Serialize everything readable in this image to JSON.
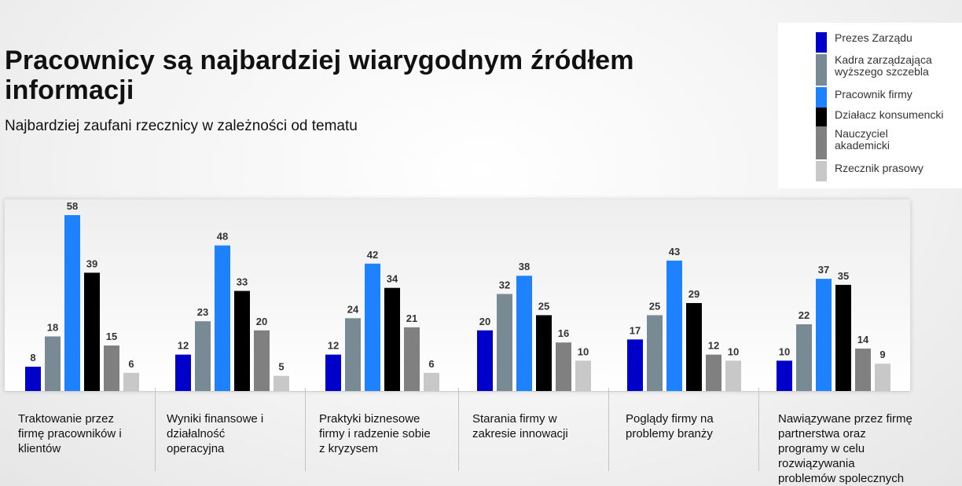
{
  "title": "Pracownicy są najbardziej wiarygodnym źródłem informacji",
  "subtitle": "Najbardziej zaufani rzecznicy w zależności od tematu",
  "legend": [
    {
      "label": "Prezes Zarządu",
      "color": "#0000c8"
    },
    {
      "label": "Kadra zarządzająca wyższego szczebla",
      "color": "#788a94"
    },
    {
      "label": "Pracownik firmy",
      "color": "#1e82ff"
    },
    {
      "label": "Działacz konsumencki",
      "color": "#000000"
    },
    {
      "label": "Nauczyciel akademicki",
      "color": "#808080"
    },
    {
      "label": "Rzecznik prasowy",
      "color": "#c8c8c8"
    }
  ],
  "chart_data": {
    "type": "bar",
    "title": "Pracownicy są najbardziej wiarygodnym źródłem informacji",
    "subtitle": "Najbardziej zaufani rzecznicy w zależności od tematu",
    "categories": [
      "Traktowanie przez firmę pracowników i klientów",
      "Wyniki finansowe i działalność operacyjna",
      "Praktyki biznesowe firmy i radzenie sobie z kryzysem",
      "Starania firmy w zakresie innowacji",
      "Poglądy firmy na problemy branży",
      "Nawiązywane przez firmę partnerstwa oraz programy w celu rozwiązywania problemów społecznych"
    ],
    "series": [
      {
        "name": "Prezes Zarządu",
        "values": [
          8,
          12,
          12,
          20,
          17,
          10
        ]
      },
      {
        "name": "Kadra zarządzająca wyższego szczebla",
        "values": [
          18,
          23,
          24,
          32,
          25,
          22
        ]
      },
      {
        "name": "Pracownik firmy",
        "values": [
          58,
          48,
          42,
          38,
          43,
          37
        ]
      },
      {
        "name": "Działacz konsumencki",
        "values": [
          39,
          33,
          34,
          25,
          29,
          35
        ]
      },
      {
        "name": "Nauczyciel akademicki",
        "values": [
          15,
          20,
          21,
          16,
          12,
          14
        ]
      },
      {
        "name": "Rzecznik prasowy",
        "values": [
          6,
          5,
          6,
          10,
          10,
          9
        ]
      }
    ],
    "xlabel": "",
    "ylabel": "",
    "ylim": [
      0,
      60
    ],
    "grid": false,
    "legend_position": "top-right",
    "data_labels": true
  },
  "category_label_lines": [
    [
      "Traktowanie przez",
      "firmę pracowników i",
      "klientów"
    ],
    [
      "Wyniki finansowe i",
      "działalność",
      "operacyjna"
    ],
    [
      "Praktyki biznesowe",
      "firmy i radzenie sobie",
      "z kryzysem"
    ],
    [
      "Starania firmy  w",
      "zakresie innowacji"
    ],
    [
      "Poglądy firmy na",
      "problemy branży"
    ],
    [
      "Nawiązywane przez firmę",
      "partnerstwa oraz",
      "programy w celu",
      "rozwiązywania",
      "problemów spolecznych"
    ]
  ],
  "legend_label_lines": [
    [
      "Prezes Zarządu"
    ],
    [
      "Kadra zarządzająca",
      "wyższego szczebla"
    ],
    [
      "Pracownik firmy"
    ],
    [
      "Działacz konsumencki"
    ],
    [
      "Nauczyciel",
      "akademicki"
    ],
    [
      "Rzecznik prasowy"
    ]
  ]
}
